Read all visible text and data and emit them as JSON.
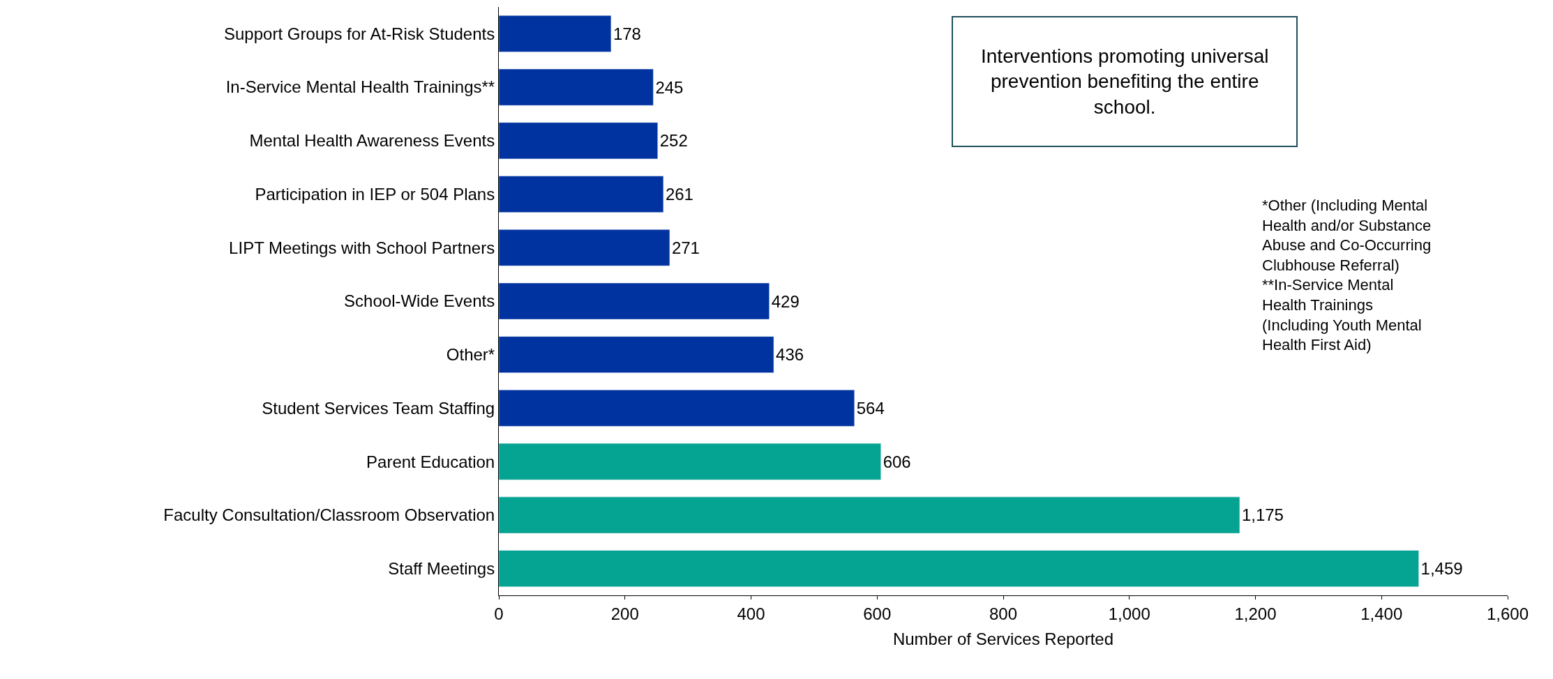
{
  "chart_data": {
    "type": "bar",
    "orientation": "horizontal",
    "xlabel": "Number of Services Reported",
    "categories": [
      "Support Groups for At-Risk Students",
      "In-Service Mental Health Trainings**",
      "Mental Health Awareness Events",
      "Participation in IEP or 504 Plans",
      "LIPT Meetings with School Partners",
      "School-Wide Events",
      "Other*",
      "Student Services Team Staffing",
      "Parent Education",
      "Faculty Consultation/Classroom Observation",
      "Staff Meetings"
    ],
    "values": [
      178,
      245,
      252,
      261,
      271,
      429,
      436,
      564,
      606,
      1175,
      1459
    ],
    "colors": [
      "#0033a0",
      "#0033a0",
      "#0033a0",
      "#0033a0",
      "#0033a0",
      "#0033a0",
      "#0033a0",
      "#0033a0",
      "#05a391",
      "#05a391",
      "#05a391"
    ],
    "xlim": [
      0,
      1600
    ],
    "xticks": [
      0,
      200,
      400,
      600,
      800,
      {
        "value": 1000,
        "label": "1,000"
      },
      {
        "value": 1200,
        "label": "1,200"
      },
      {
        "value": 1400,
        "label": "1,400"
      },
      {
        "value": 1600,
        "label": "1,600"
      }
    ],
    "value_labels": [
      "178",
      "245",
      "252",
      "261",
      "271",
      "429",
      "436",
      "564",
      "606",
      "1,175",
      "1,459"
    ],
    "legend": false,
    "annotations": [
      "Interventions promoting universal prevention benefiting the entire school.",
      "*Other (Including Mental Health and/or Substance Abuse and Co-Occurring Clubhouse Referral)",
      "**In-Service Mental Health Trainings (Including Youth Mental Health First Aid)"
    ]
  }
}
